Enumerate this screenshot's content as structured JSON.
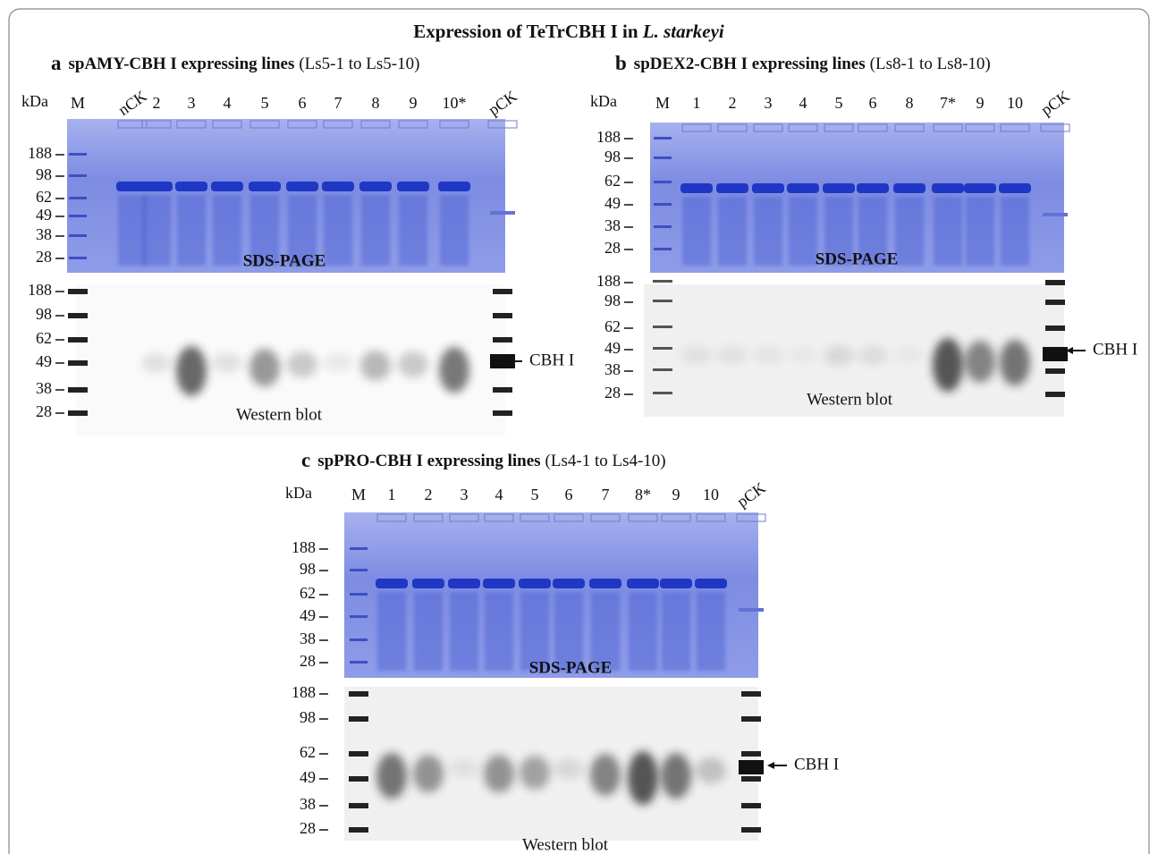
{
  "title": {
    "text": "Expression of TeTrCBH I in ",
    "italic": "L. starkeyi"
  },
  "panels": [
    {
      "letter": "a",
      "heading": "spAMY-CBH I expressing lines",
      "range": "(Ls5-1 to Ls5-10)",
      "unit": "kDa",
      "lanes": [
        "M",
        "nCK",
        "2",
        "3",
        "4",
        "5",
        "6",
        "7",
        "8",
        "9",
        "10*",
        "pCK"
      ],
      "sds_markers": [
        "188",
        "98",
        "62",
        "49",
        "38",
        "28"
      ],
      "western_markers": [
        "188",
        "98",
        "62",
        "49",
        "38",
        "28"
      ],
      "sds_label": "SDS-PAGE",
      "western_label": "Western blot",
      "arrow_label": "CBH I"
    },
    {
      "letter": "b",
      "heading": "spDEX2-CBH I expressing lines",
      "range": "(Ls8-1 to Ls8-10)",
      "unit": "kDa",
      "lanes": [
        "M",
        "1",
        "2",
        "3",
        "4",
        "5",
        "6",
        "8",
        "7*",
        "9",
        "10",
        "pCK"
      ],
      "sds_markers": [
        "188",
        "98",
        "62",
        "49",
        "38",
        "28"
      ],
      "western_markers": [
        "188",
        "98",
        "62",
        "49",
        "38",
        "28"
      ],
      "sds_label": "SDS-PAGE",
      "western_label": "Western blot",
      "arrow_label": "CBH I"
    },
    {
      "letter": "c",
      "heading": "spPRO-CBH I expressing lines",
      "range": "(Ls4-1 to Ls4-10)",
      "unit": "kDa",
      "lanes": [
        "M",
        "1",
        "2",
        "3",
        "4",
        "5",
        "6",
        "7",
        "8*",
        "9",
        "10",
        "pCK"
      ],
      "sds_markers": [
        "188",
        "98",
        "62",
        "49",
        "38",
        "28"
      ],
      "western_markers": [
        "188",
        "98",
        "62",
        "49",
        "38",
        "28"
      ],
      "sds_label": "SDS-PAGE",
      "western_label": "Western blot",
      "arrow_label": "CBH I"
    }
  ]
}
